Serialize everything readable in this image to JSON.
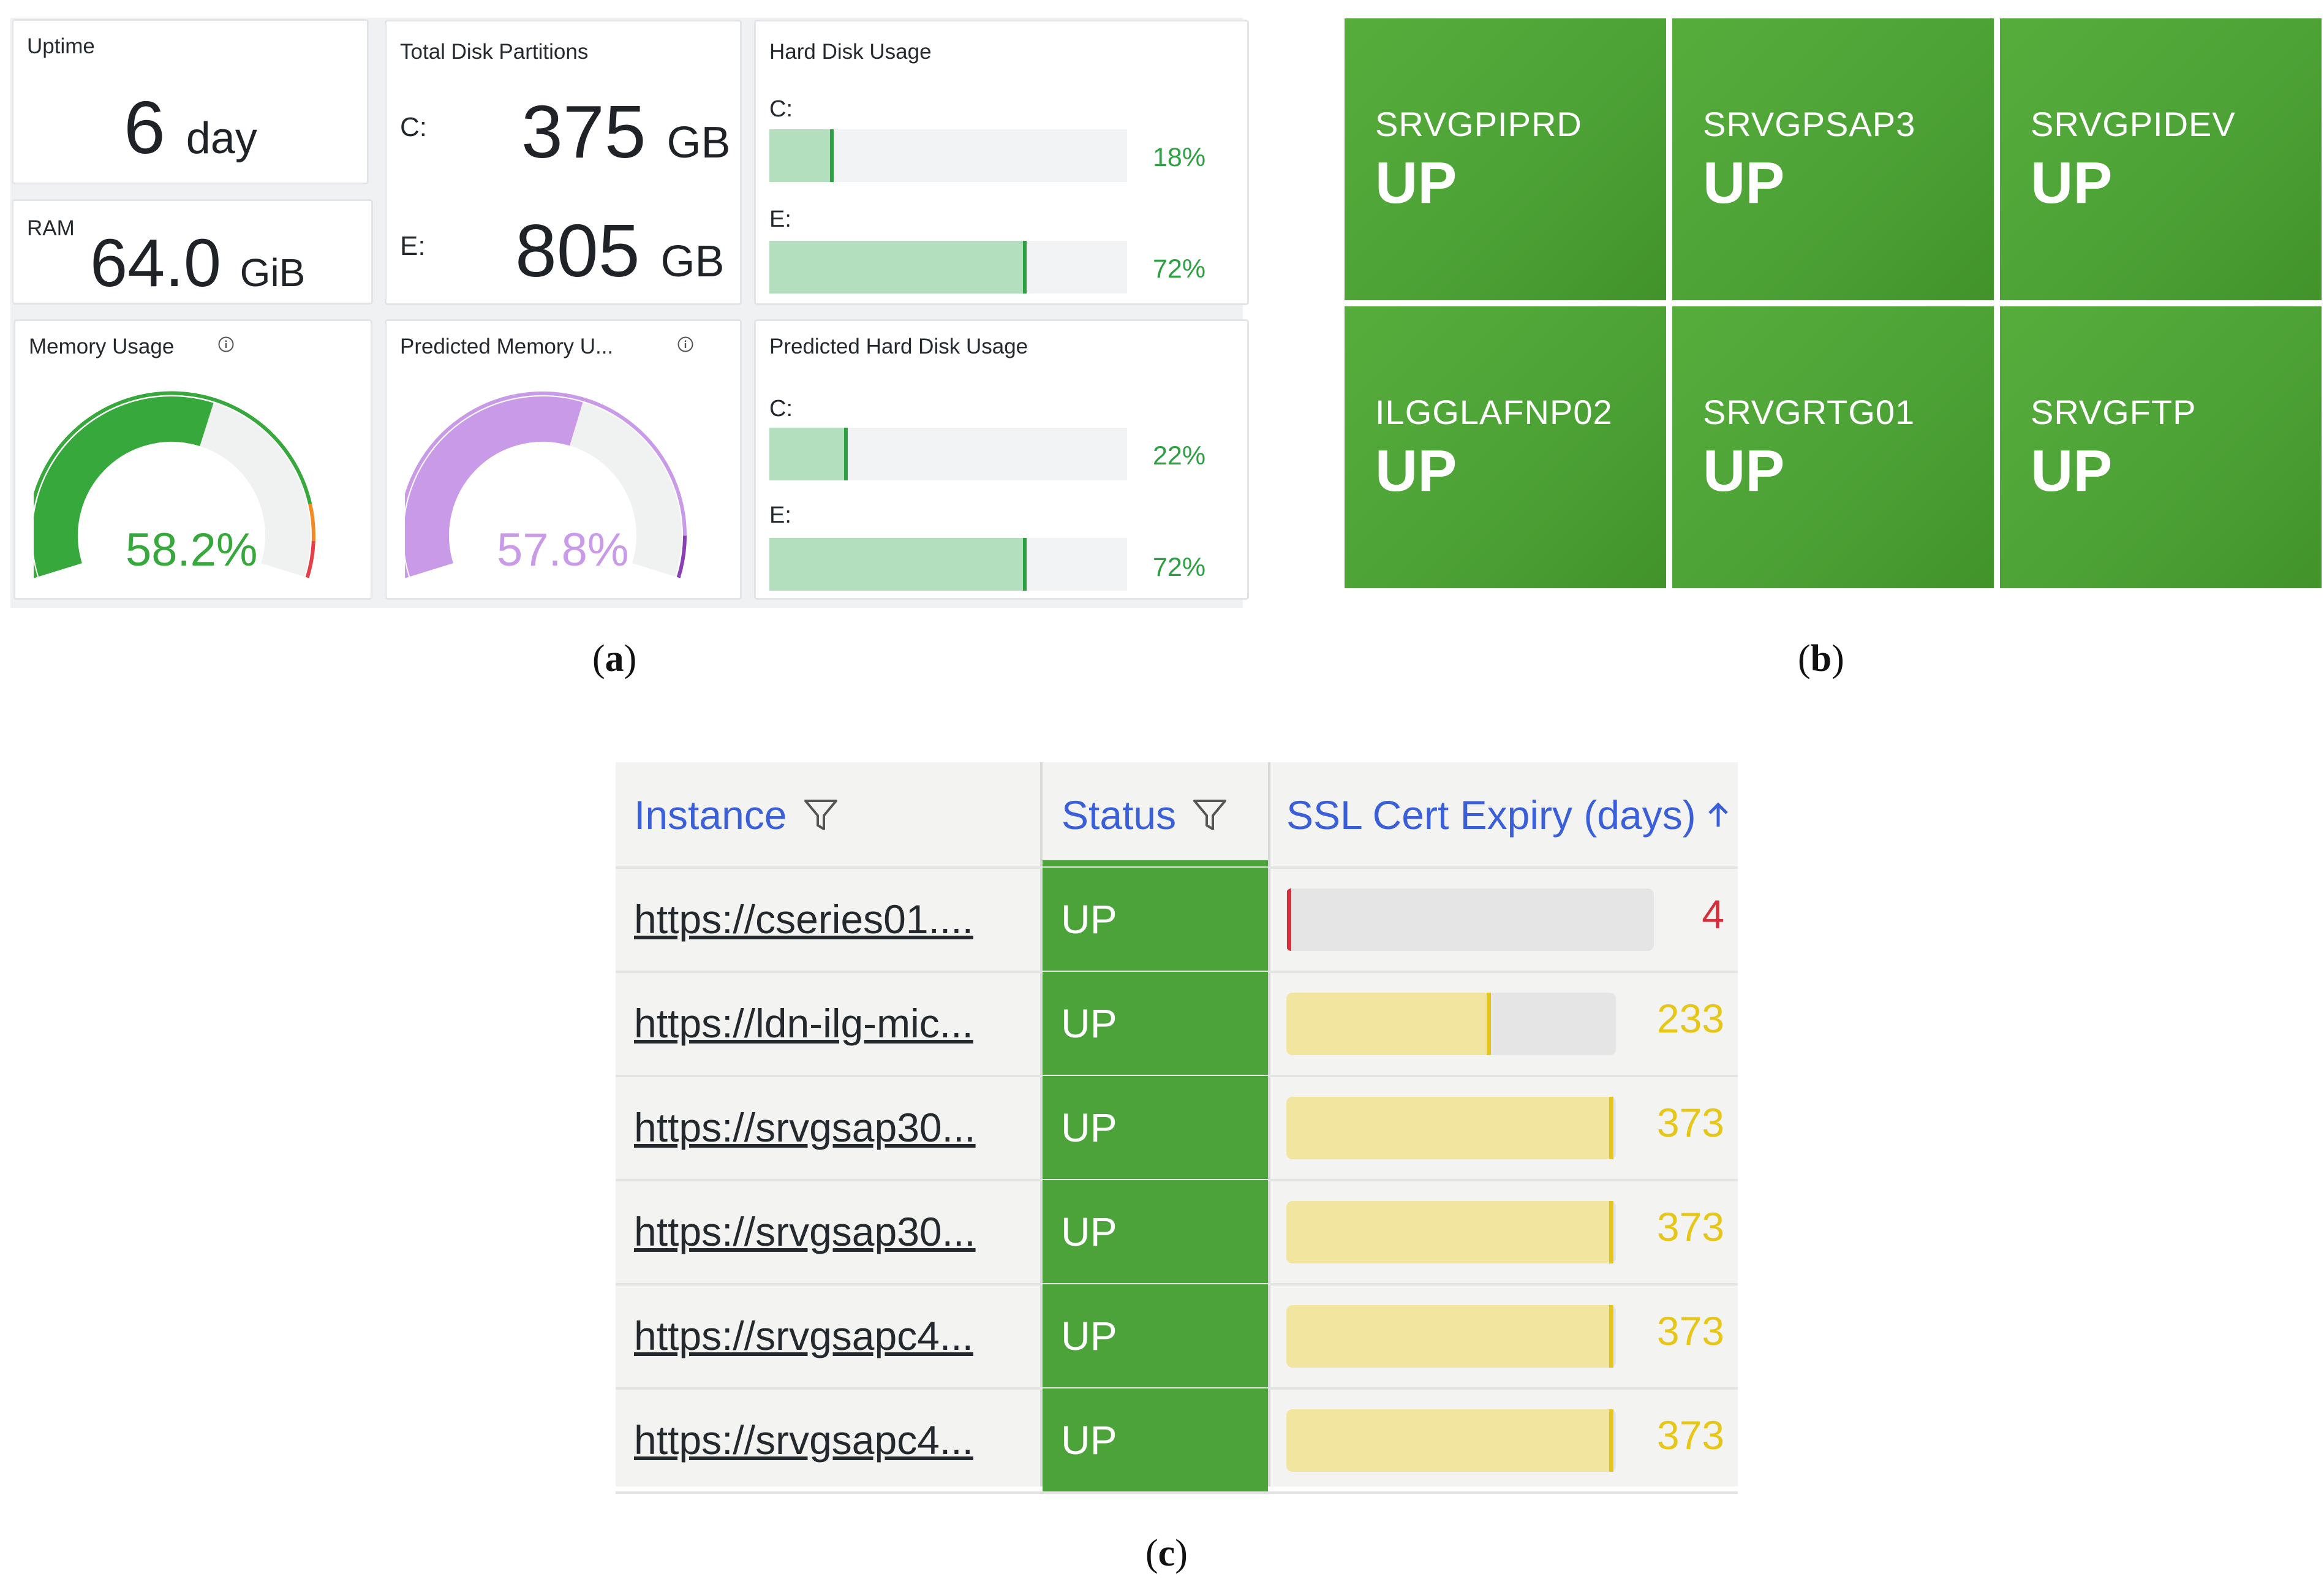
{
  "panel_a": {
    "uptime": {
      "title": "Uptime",
      "value": "6",
      "unit": "day"
    },
    "ram": {
      "title": "RAM",
      "value": "64.0",
      "unit": "GiB"
    },
    "total_disk": {
      "title": "Total Disk Partitions",
      "partitions": [
        {
          "label": "C:",
          "value": "375",
          "unit": "GB"
        },
        {
          "label": "E:",
          "value": "805",
          "unit": "GB"
        }
      ]
    },
    "hard_disk_usage": {
      "title": "Hard Disk Usage",
      "drives": [
        {
          "label": "C:",
          "percent": 18,
          "text": "18%"
        },
        {
          "label": "E:",
          "percent": 72,
          "text": "72%"
        }
      ]
    },
    "memory_usage": {
      "title": "Memory Usage",
      "percent": 58.2,
      "text": "58.2%",
      "color": "#37a83c",
      "info_icon": "info-icon"
    },
    "predicted_memory": {
      "title": "Predicted Memory U...",
      "percent": 57.8,
      "text": "57.8%",
      "color": "#c99ae8",
      "info_icon": "info-icon"
    },
    "predicted_disk": {
      "title": "Predicted Hard Disk Usage",
      "drives": [
        {
          "label": "C:",
          "percent": 22,
          "text": "22%"
        },
        {
          "label": "E:",
          "percent": 72,
          "text": "72%"
        }
      ]
    },
    "caption_letter": "a"
  },
  "panel_b": {
    "tiles": [
      {
        "name": "SRVGPIPRD",
        "status": "UP"
      },
      {
        "name": "SRVGPSAP3",
        "status": "UP"
      },
      {
        "name": "SRVGPIDEV",
        "status": "UP"
      },
      {
        "name": "ILGGLAFNP02",
        "status": "UP"
      },
      {
        "name": "SRVGRTG01",
        "status": "UP"
      },
      {
        "name": "SRVGFTP",
        "status": "UP"
      }
    ],
    "tile_color": "#4da236",
    "caption_letter": "b"
  },
  "panel_c": {
    "headers": {
      "instance": "Instance",
      "status": "Status",
      "ssl": "SSL Cert Expiry (days)",
      "sort_icon": "arrow-up-icon",
      "filter_icon": "filter-icon"
    },
    "rows": [
      {
        "instance": "https://cseries01....",
        "status": "UP",
        "ssl_days": 4,
        "ssl_text": "4",
        "ssl_color": "#d62e3c",
        "ssl_fill": "#e4e5e4"
      },
      {
        "instance": "https://ldn-ilg-mic...",
        "status": "UP",
        "ssl_days": 233,
        "ssl_text": "233",
        "ssl_color": "#e6c619",
        "ssl_fill": "#f2e5a0"
      },
      {
        "instance": "https://srvgsap30...",
        "status": "UP",
        "ssl_days": 373,
        "ssl_text": "373",
        "ssl_color": "#e6c619",
        "ssl_fill": "#f2e5a0"
      },
      {
        "instance": "https://srvgsap30...",
        "status": "UP",
        "ssl_days": 373,
        "ssl_text": "373",
        "ssl_color": "#e6c619",
        "ssl_fill": "#f2e5a0"
      },
      {
        "instance": "https://srvgsapc4...",
        "status": "UP",
        "ssl_days": 373,
        "ssl_text": "373",
        "ssl_color": "#e6c619",
        "ssl_fill": "#f2e5a0"
      },
      {
        "instance": "https://srvgsapc4...",
        "status": "UP",
        "ssl_days": 373,
        "ssl_text": "373",
        "ssl_color": "#e6c619",
        "ssl_fill": "#f2e5a0"
      }
    ],
    "ssl_max_days": 373,
    "status_color": "#4ca33a",
    "caption_letter": "c"
  }
}
